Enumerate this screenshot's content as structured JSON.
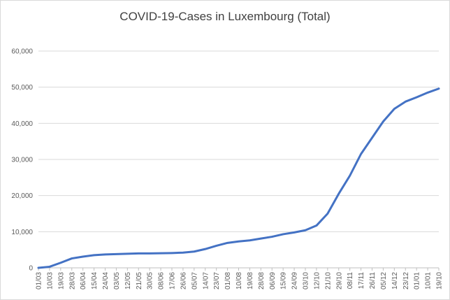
{
  "chart_data": {
    "type": "line",
    "title": "COVID-19-Cases in Luxembourg (Total)",
    "xlabel": "",
    "ylabel": "",
    "ylim": [
      0,
      60000
    ],
    "yticks": [
      "0",
      "10,000",
      "20,000",
      "30,000",
      "40,000",
      "50,000",
      "60,000"
    ],
    "grid": true,
    "legend": "none",
    "line_color": "#4472c4",
    "categories": [
      "01/03",
      "10/03",
      "19/03",
      "28/03",
      "06/04",
      "15/04",
      "24/04",
      "03/05",
      "12/05",
      "21/05",
      "30/05",
      "08/06",
      "17/06",
      "26/06",
      "05/07",
      "14/07",
      "23/07",
      "01/08",
      "10/08",
      "19/08",
      "28/08",
      "06/09",
      "15/09",
      "24/09",
      "03/10",
      "12/10",
      "21/10",
      "29/10",
      "08/11",
      "17/11",
      "26/11",
      "05/12",
      "14/12",
      "23/12",
      "01/01",
      "10/01",
      "19/10"
    ],
    "series": [
      {
        "values": [
          0,
          300,
          1400,
          2600,
          3100,
          3500,
          3700,
          3800,
          3900,
          4000,
          4000,
          4050,
          4100,
          4200,
          4500,
          5200,
          6100,
          6900,
          7300,
          7600,
          8100,
          8600,
          9300,
          9800,
          10400,
          11700,
          15000,
          20500,
          25500,
          31500,
          36000,
          40500,
          44000,
          46000,
          47200,
          48500,
          49600
        ]
      }
    ]
  }
}
